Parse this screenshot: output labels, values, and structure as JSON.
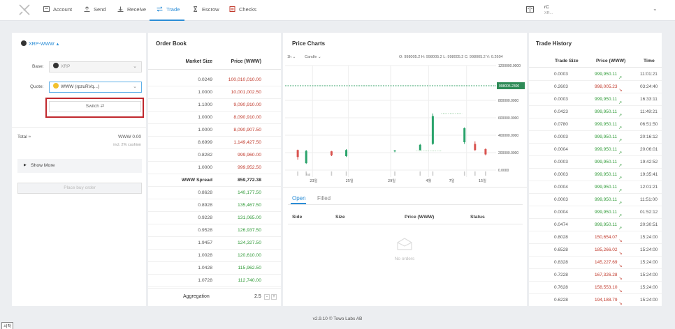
{
  "nav": {
    "items": [
      {
        "label": "Account",
        "icon": "account-icon"
      },
      {
        "label": "Send",
        "icon": "send-icon"
      },
      {
        "label": "Receive",
        "icon": "receive-icon"
      },
      {
        "label": "Trade",
        "icon": "trade-icon",
        "active": true
      },
      {
        "label": "Escrow",
        "icon": "escrow-icon"
      },
      {
        "label": "Checks",
        "icon": "checks-icon"
      }
    ],
    "account_name": "rC",
    "account_sub": "XR..."
  },
  "order_form": {
    "pair": "XRP-WWW",
    "base_label": "Base:",
    "base_value": "XRP",
    "quote_label": "Quote:",
    "quote_value": "WWW (rpzuRVq...)",
    "switch_label": "Switch",
    "total_label": "Total",
    "total_value": "WWW 0.00",
    "total_note": "incl. 2% cushion",
    "show_more_label": "Show More",
    "place_label": "Place buy order"
  },
  "order_book": {
    "title": "Order Book",
    "col_size": "Market Size",
    "col_price": "Price (WWW)",
    "asks": [
      {
        "size": "0.0249",
        "price": "100,010,010.00"
      },
      {
        "size": "1.0000",
        "price": "10,001,002.50"
      },
      {
        "size": "1.1000",
        "price": "9,090,910.00"
      },
      {
        "size": "1.0000",
        "price": "8,090,910.00"
      },
      {
        "size": "1.0000",
        "price": "8,090,907.50"
      },
      {
        "size": "8.6999",
        "price": "1,149,427.50"
      },
      {
        "size": "0.8282",
        "price": "999,960.00"
      },
      {
        "size": "1.0000",
        "price": "999,952.50"
      }
    ],
    "spread_label": "WWW Spread",
    "spread_value": "859,772.38",
    "bids": [
      {
        "size": "0.8628",
        "price": "140,177.50"
      },
      {
        "size": "0.8928",
        "price": "135,467.50"
      },
      {
        "size": "0.9228",
        "price": "131,065.00"
      },
      {
        "size": "0.9528",
        "price": "126,937.50"
      },
      {
        "size": "1.9457",
        "price": "124,327.50"
      },
      {
        "size": "1.0028",
        "price": "120,610.00"
      },
      {
        "size": "1.0428",
        "price": "115,962.50"
      },
      {
        "size": "1.0728",
        "price": "112,740.00"
      }
    ],
    "aggregation_label": "Aggregation",
    "aggregation_value": "2.5"
  },
  "price_chart": {
    "title": "Price Charts",
    "interval": "1h",
    "chart_kind": "Candle",
    "ohlc_readout": "O: 998005.2  H: 998005.2  L: 998005.2  C: 998005.2  V: 0.2604",
    "y_ticks": [
      "1200000.0000",
      "800000.0000",
      "600000.0000",
      "400000.0000",
      "200000.0000",
      "0.0000"
    ],
    "price_marker": "998005.2300",
    "vol_label": "Vol",
    "x_ticks": [
      "23일",
      "25일",
      "29일",
      "4월",
      "7일",
      "15일"
    ]
  },
  "chart_data": {
    "type": "candlestick",
    "y_axis_ticks": [
      1200000,
      800000,
      600000,
      400000,
      200000,
      0
    ],
    "current_price": 998005.23,
    "x_tick_labels": [
      "23일",
      "25일",
      "29일",
      "4월",
      "7일",
      "15일"
    ],
    "candles": [
      {
        "x": 0.06,
        "o": 230000,
        "c": 150000,
        "h": 235000,
        "l": 120000
      },
      {
        "x": 0.1,
        "o": 80000,
        "c": 220000,
        "h": 230000,
        "l": 70000
      },
      {
        "x": 0.22,
        "o": 215000,
        "c": 170000,
        "h": 220000,
        "l": 160000
      },
      {
        "x": 0.29,
        "o": 160000,
        "c": 230000,
        "h": 240000,
        "l": 150000
      },
      {
        "x": 0.52,
        "o": 215000,
        "c": 225000,
        "h": 230000,
        "l": 205000
      },
      {
        "x": 0.64,
        "o": 230000,
        "c": 290000,
        "h": 300000,
        "l": 225000
      },
      {
        "x": 0.7,
        "o": 300000,
        "c": 620000,
        "h": 650000,
        "l": 290000
      },
      {
        "x": 0.85,
        "o": 320000,
        "c": 480000,
        "h": 490000,
        "l": 300000
      },
      {
        "x": 0.9,
        "o": 300000,
        "c": 230000,
        "h": 330000,
        "l": 220000
      },
      {
        "x": 0.95,
        "o": 240000,
        "c": 180000,
        "h": 250000,
        "l": 170000
      }
    ]
  },
  "my_orders": {
    "tab_open": "Open",
    "tab_filled": "Filled",
    "col_side": "Side",
    "col_size": "Size",
    "col_price": "Price (WWW)",
    "col_status": "Status",
    "empty": "No orders"
  },
  "trade_history": {
    "title": "Trade History",
    "col_size": "Trade Size",
    "col_price": "Price (WWW)",
    "col_time": "Time",
    "rows": [
      {
        "size": "0.0003",
        "price": "999,950.11",
        "dir": "up",
        "time": "11:01:21"
      },
      {
        "size": "0.2603",
        "price": "998,005.23",
        "dir": "down",
        "time": "03:24:40"
      },
      {
        "size": "0.0003",
        "price": "999,950.11",
        "dir": "up",
        "time": "16:33:11"
      },
      {
        "size": "0.0423",
        "price": "999,950.11",
        "dir": "up",
        "time": "11:49:21"
      },
      {
        "size": "0.0780",
        "price": "999,950.11",
        "dir": "up",
        "time": "06:51:50"
      },
      {
        "size": "0.0003",
        "price": "999,950.11",
        "dir": "up",
        "time": "20:16:12"
      },
      {
        "size": "0.0004",
        "price": "999,950.11",
        "dir": "up",
        "time": "20:06:01"
      },
      {
        "size": "0.0003",
        "price": "999,950.11",
        "dir": "up",
        "time": "19:42:52"
      },
      {
        "size": "0.0003",
        "price": "999,950.11",
        "dir": "up",
        "time": "19:35:41"
      },
      {
        "size": "0.0004",
        "price": "999,950.11",
        "dir": "up",
        "time": "12:01:21"
      },
      {
        "size": "0.0003",
        "price": "999,950.11",
        "dir": "up",
        "time": "11:51:00"
      },
      {
        "size": "0.0004",
        "price": "999,950.11",
        "dir": "up",
        "time": "01:52:12"
      },
      {
        "size": "0.0474",
        "price": "999,950.11",
        "dir": "up",
        "time": "20:30:51"
      },
      {
        "size": "0.8028",
        "price": "150,654.07",
        "dir": "down",
        "time": "15:24:00"
      },
      {
        "size": "0.6528",
        "price": "185,266.02",
        "dir": "down",
        "time": "15:24:00"
      },
      {
        "size": "0.8328",
        "price": "145,227.69",
        "dir": "down",
        "time": "15:24:00"
      },
      {
        "size": "0.7228",
        "price": "167,326.28",
        "dir": "down",
        "time": "15:24:00"
      },
      {
        "size": "0.7628",
        "price": "158,553.10",
        "dir": "down",
        "time": "15:24:00"
      },
      {
        "size": "0.6228",
        "price": "194,188.79",
        "dir": "down",
        "time": "15:24:00"
      }
    ]
  },
  "footer": "v2.9.10 © Towo Labs AB",
  "taskbar_start": "시작",
  "colors": {
    "accent": "#2b8dd6",
    "sell": "#c0392b",
    "buy": "#2f9a37",
    "highlight_box": "#c0282d"
  }
}
